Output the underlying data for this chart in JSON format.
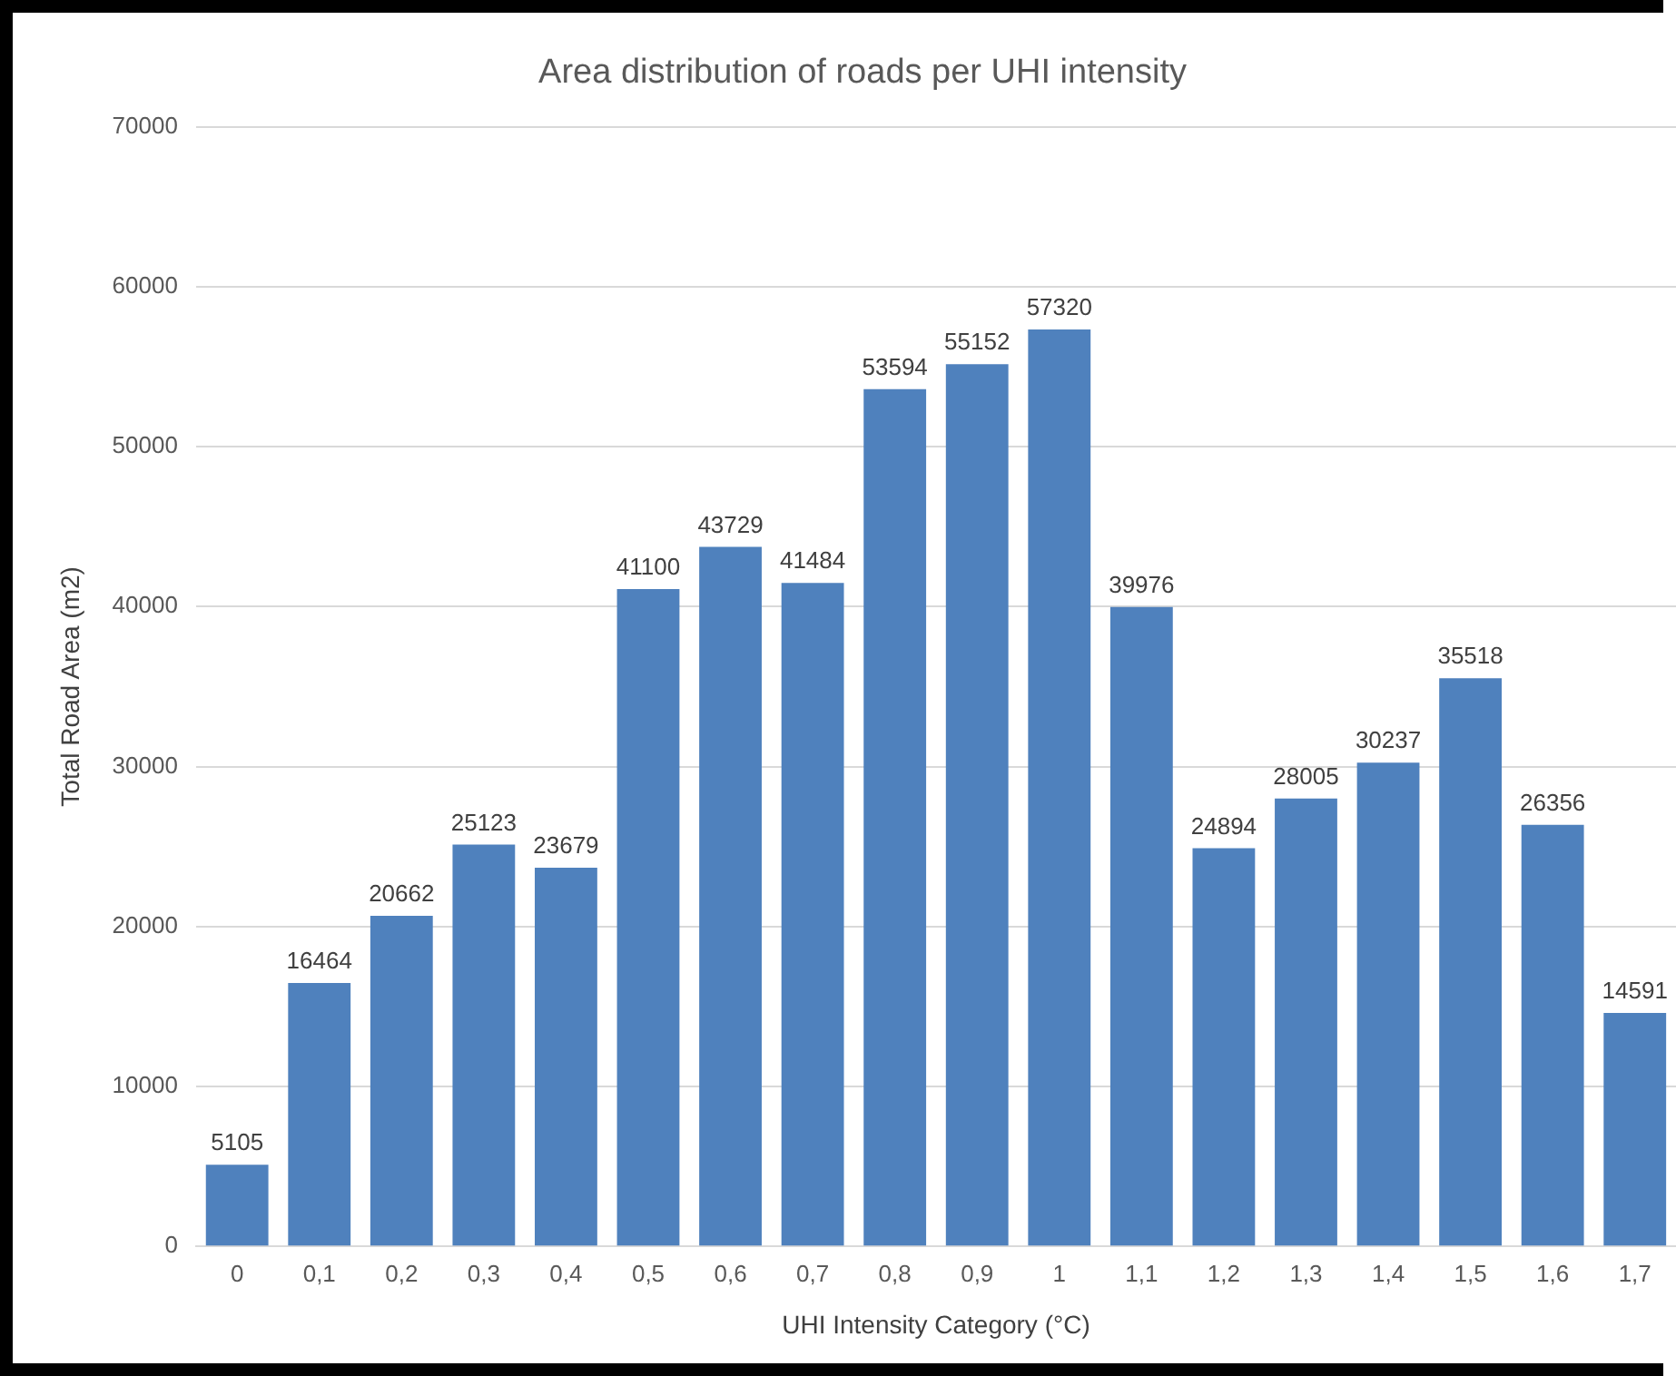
{
  "chart_data": {
    "type": "bar",
    "title": "Area distribution of roads per UHI intensity",
    "xlabel": "UHI Intensity Category (°C)",
    "ylabel": "Total Road Area (m2)",
    "categories": [
      "0",
      "0,1",
      "0,2",
      "0,3",
      "0,4",
      "0,5",
      "0,6",
      "0,7",
      "0,8",
      "0,9",
      "1",
      "1,1",
      "1,2",
      "1,3",
      "1,4",
      "1,5",
      "1,6",
      "1,7"
    ],
    "values": [
      5105,
      16464,
      20662,
      25123,
      23679,
      41100,
      43729,
      41484,
      53594,
      55152,
      57320,
      39976,
      24894,
      28005,
      30237,
      35518,
      26356,
      14591
    ],
    "color": "#4f81bd",
    "ylim": [
      0,
      70000
    ],
    "yticks": [
      0,
      10000,
      20000,
      30000,
      40000,
      50000,
      60000,
      70000
    ],
    "grid": "y",
    "data_labels": true,
    "legend": false
  }
}
